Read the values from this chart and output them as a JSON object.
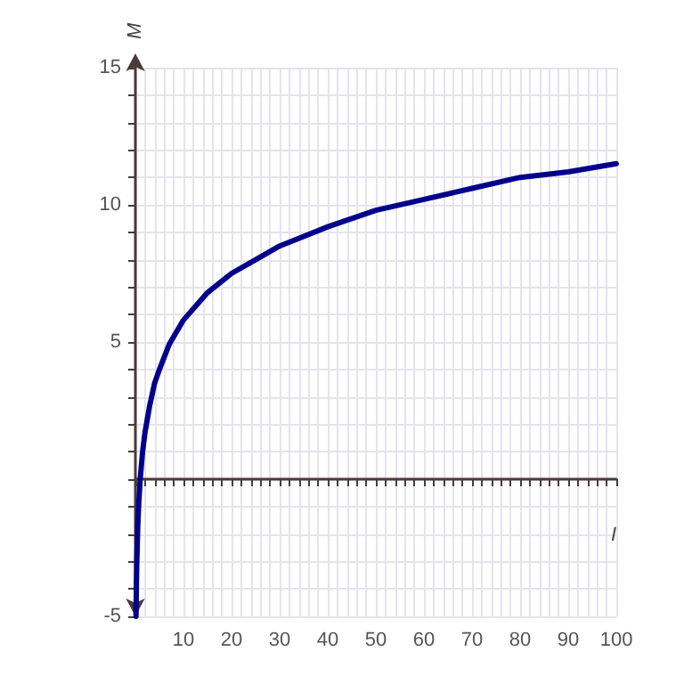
{
  "chart_data": {
    "type": "line",
    "xlabel": "I",
    "ylabel": "M",
    "x": [
      0.135,
      0.2,
      0.3,
      0.5,
      0.7,
      1,
      1.5,
      2,
      3,
      4,
      5,
      7,
      10,
      15,
      20,
      25,
      30,
      40,
      50,
      60,
      70,
      80,
      90,
      100
    ],
    "series": [
      {
        "color": "#00008b",
        "values": [
          -5.0,
          -4.0,
          -3.0,
          -1.7,
          -0.9,
          0,
          1.0,
          1.7,
          2.7,
          3.5,
          4.0,
          4.9,
          5.8,
          6.8,
          7.5,
          8.0,
          8.5,
          9.2,
          9.8,
          10.2,
          10.6,
          11.0,
          11.2,
          11.5
        ]
      }
    ],
    "xlim": [
      0,
      100
    ],
    "ylim": [
      -5,
      15
    ],
    "xticks": [
      {
        "value": 0,
        "label": null
      },
      {
        "value": 2,
        "label": null
      },
      {
        "value": 4,
        "label": null
      },
      {
        "value": 6,
        "label": null
      },
      {
        "value": 8,
        "label": null
      },
      10,
      {
        "value": 12,
        "label": null
      },
      {
        "value": 14,
        "label": null
      },
      {
        "value": 16,
        "label": null
      },
      {
        "value": 18,
        "label": null
      },
      20,
      {
        "value": 22,
        "label": null
      },
      {
        "value": 24,
        "label": null
      },
      {
        "value": 26,
        "label": null
      },
      {
        "value": 28,
        "label": null
      },
      30,
      {
        "value": 32,
        "label": null
      },
      {
        "value": 34,
        "label": null
      },
      {
        "value": 36,
        "label": null
      },
      {
        "value": 38,
        "label": null
      },
      40,
      {
        "value": 42,
        "label": null
      },
      {
        "value": 44,
        "label": null
      },
      {
        "value": 46,
        "label": null
      },
      {
        "value": 48,
        "label": null
      },
      50,
      {
        "value": 52,
        "label": null
      },
      {
        "value": 54,
        "label": null
      },
      {
        "value": 56,
        "label": null
      },
      {
        "value": 58,
        "label": null
      },
      60,
      {
        "value": 62,
        "label": null
      },
      {
        "value": 64,
        "label": null
      },
      {
        "value": 66,
        "label": null
      },
      {
        "value": 68,
        "label": null
      },
      70,
      {
        "value": 72,
        "label": null
      },
      {
        "value": 74,
        "label": null
      },
      {
        "value": 76,
        "label": null
      },
      {
        "value": 78,
        "label": null
      },
      80,
      {
        "value": 82,
        "label": null
      },
      {
        "value": 84,
        "label": null
      },
      {
        "value": 86,
        "label": null
      },
      {
        "value": 88,
        "label": null
      },
      90,
      {
        "value": 92,
        "label": null
      },
      {
        "value": 94,
        "label": null
      },
      {
        "value": 96,
        "label": null
      },
      {
        "value": 98,
        "label": null
      },
      100
    ],
    "yticks": [
      -5,
      {
        "value": -4,
        "label": null
      },
      {
        "value": -3,
        "label": null
      },
      {
        "value": -2,
        "label": null
      },
      {
        "value": -1,
        "label": null
      },
      {
        "value": 0,
        "label": null
      },
      {
        "value": 1,
        "label": null
      },
      {
        "value": 2,
        "label": null
      },
      {
        "value": 3,
        "label": null
      },
      {
        "value": 4,
        "label": null
      },
      5,
      {
        "value": 6,
        "label": null
      },
      {
        "value": 7,
        "label": null
      },
      {
        "value": 8,
        "label": null
      },
      {
        "value": 9,
        "label": null
      },
      10,
      {
        "value": 11,
        "label": null
      },
      {
        "value": 12,
        "label": null
      },
      {
        "value": 13,
        "label": null
      },
      {
        "value": 14,
        "label": null
      },
      15
    ],
    "grid": true,
    "marker": "none",
    "line_style": "solid"
  }
}
